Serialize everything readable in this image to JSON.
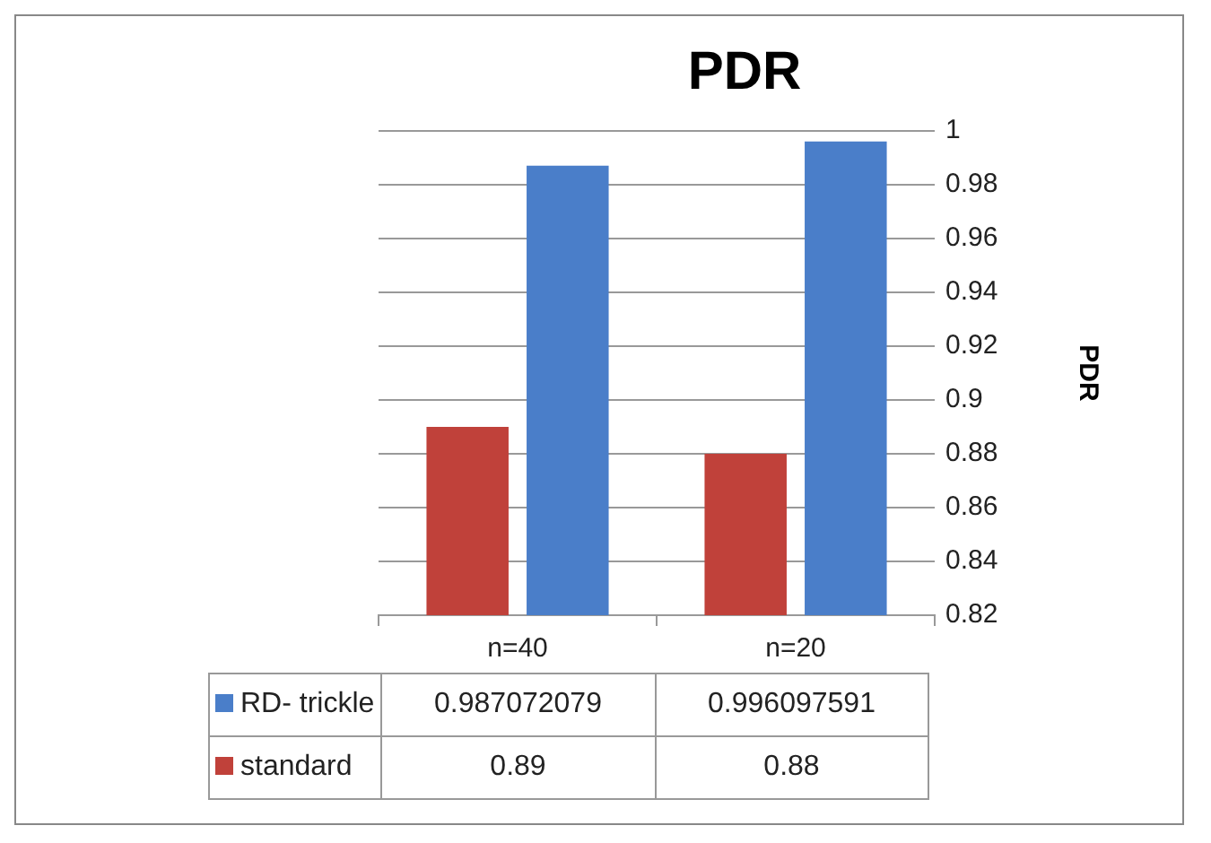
{
  "chart_data": {
    "type": "bar",
    "title": "PDR",
    "ylabel": "PDR",
    "categories": [
      "n=40",
      "n=20"
    ],
    "series": [
      {
        "name": "standard",
        "color": "#c0413a",
        "values": [
          0.89,
          0.88
        ]
      },
      {
        "name": "RD- trickle",
        "color": "#4a7ec9",
        "values": [
          0.987072079,
          0.996097591
        ]
      }
    ],
    "ylim": [
      0.82,
      1
    ],
    "yticks": [
      0.82,
      0.84,
      0.86,
      0.88,
      0.9,
      0.92,
      0.94,
      0.96,
      0.98,
      1
    ],
    "grid": "y",
    "legend": "bottom",
    "data_labels": true
  }
}
